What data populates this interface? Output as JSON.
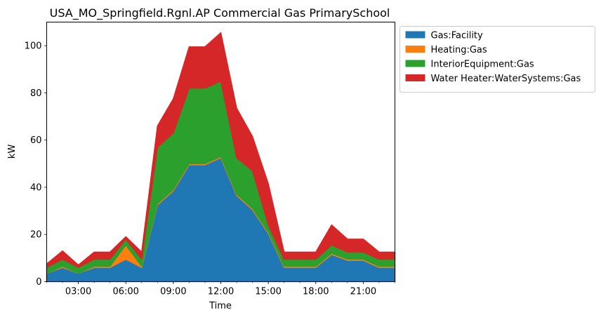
{
  "chart_data": {
    "type": "area",
    "stacked": true,
    "title": "USA_MO_Springfield.Rgnl.AP Commercial Gas PrimarySchool",
    "xlabel": "Time",
    "ylabel": "kW",
    "x_hours": [
      1,
      2,
      3,
      4,
      5,
      6,
      7,
      8,
      9,
      10,
      11,
      12,
      13,
      14,
      15,
      16,
      17,
      18,
      19,
      20,
      21,
      22,
      23
    ],
    "x_ticks": [
      {
        "hour": 3,
        "label": "03:00"
      },
      {
        "hour": 6,
        "label": "06:00"
      },
      {
        "hour": 9,
        "label": "09:00"
      },
      {
        "hour": 12,
        "label": "12:00"
      },
      {
        "hour": 15,
        "label": "15:00"
      },
      {
        "hour": 18,
        "label": "18:00"
      },
      {
        "hour": 21,
        "label": "21:00"
      }
    ],
    "xlim": [
      1,
      23
    ],
    "ylim": [
      0,
      110
    ],
    "y_ticks": [
      0,
      20,
      40,
      60,
      80,
      100
    ],
    "legend_position": "outside-upper-right",
    "series": [
      {
        "name": "Gas:Facility",
        "color": "#1f77b4",
        "values": [
          3.5,
          6,
          3.5,
          6,
          6,
          9.5,
          6,
          32.5,
          38.5,
          49.5,
          49.5,
          52.5,
          36.5,
          30.5,
          20.5,
          6,
          6,
          6,
          11.5,
          9,
          9,
          6,
          6
        ]
      },
      {
        "name": "Heating:Gas",
        "color": "#ff7f0e",
        "values": [
          0,
          0.5,
          0,
          0.5,
          0.5,
          6,
          0.5,
          0.5,
          0.5,
          0.5,
          0.5,
          0.5,
          0.5,
          0.5,
          0.5,
          0.5,
          0.5,
          0.5,
          0.5,
          0.5,
          0.5,
          0.5,
          0.5
        ]
      },
      {
        "name": "InteriorEquipment:Gas",
        "color": "#2ca02c",
        "values": [
          2.5,
          3,
          2.5,
          3,
          3,
          2.5,
          3,
          24,
          24,
          32,
          32,
          32,
          15.5,
          16,
          3,
          3,
          3,
          3,
          3.5,
          3,
          3,
          3,
          3
        ]
      },
      {
        "name": "Water Heater:WaterSystems:Gas",
        "color": "#d62728",
        "values": [
          1.5,
          3.5,
          1,
          3,
          3,
          1,
          3,
          9,
          14.5,
          17.5,
          17.5,
          20.5,
          21,
          14.5,
          17.5,
          3,
          3,
          3,
          8.5,
          5.5,
          5.5,
          3,
          3
        ]
      }
    ]
  }
}
